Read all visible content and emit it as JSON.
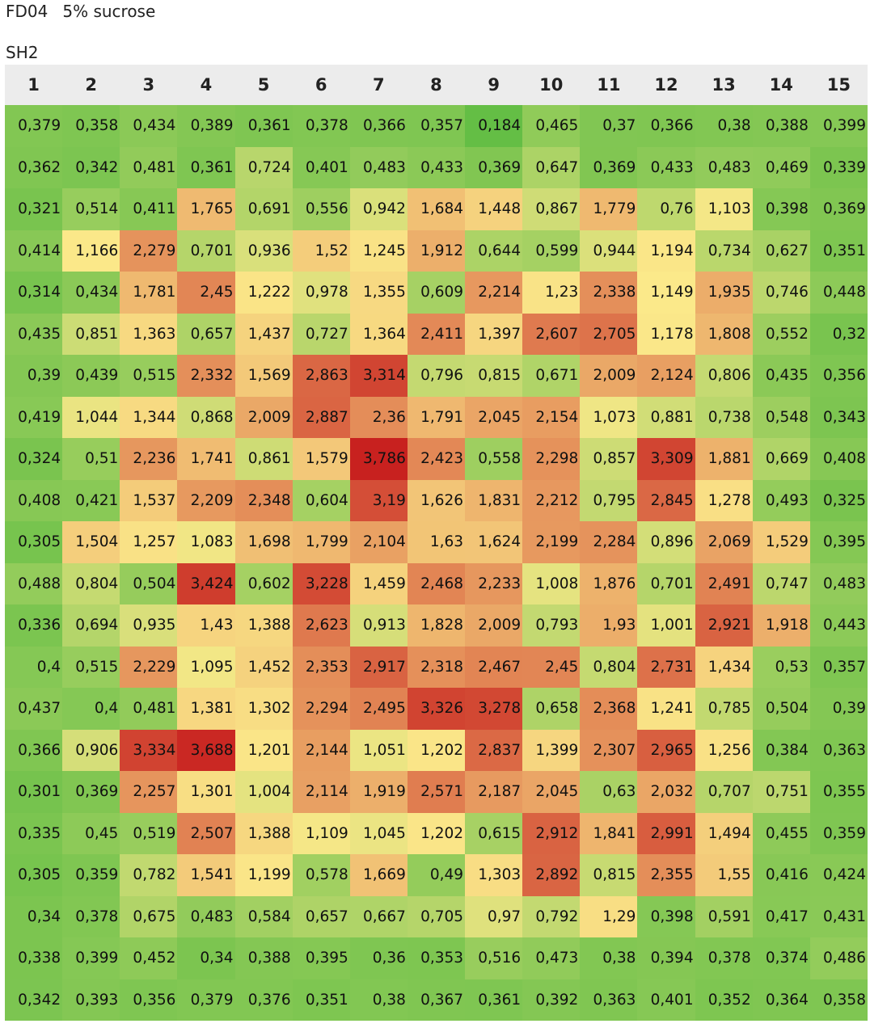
{
  "header": {
    "title": "FD04",
    "condition": "5% sucrose",
    "subtitle": "SH2"
  },
  "chart_data": {
    "type": "heatmap",
    "title": "FD04   5% sucrose",
    "subtitle": "SH2",
    "columns": [
      "1",
      "2",
      "3",
      "4",
      "5",
      "6",
      "7",
      "8",
      "9",
      "10",
      "11",
      "12",
      "13",
      "14",
      "15"
    ],
    "colorscale": {
      "low": "#63be45",
      "mid": "#fbe98a",
      "high": "#c8201e",
      "min": 0.18,
      "mid_value": 1.15,
      "max": 3.8
    },
    "cells": [
      [
        "0,379",
        "0,358",
        "0,434",
        "0,389",
        "0,361",
        "0,378",
        "0,366",
        "0,357",
        "0,184",
        "0,465",
        "0,37",
        "0,366",
        "0,38",
        "0,388",
        "0,399"
      ],
      [
        "0,362",
        "0,342",
        "0,481",
        "0,361",
        "0,724",
        "0,401",
        "0,483",
        "0,433",
        "0,369",
        "0,647",
        "0,369",
        "0,433",
        "0,483",
        "0,469",
        "0,339"
      ],
      [
        "0,321",
        "0,514",
        "0,411",
        "1,765",
        "0,691",
        "0,556",
        "0,942",
        "1,684",
        "1,448",
        "0,867",
        "1,779",
        "0,76",
        "1,103",
        "0,398",
        "0,369"
      ],
      [
        "0,414",
        "1,166",
        "2,279",
        "0,701",
        "0,936",
        "1,52",
        "1,245",
        "1,912",
        "0,644",
        "0,599",
        "0,944",
        "1,194",
        "0,734",
        "0,627",
        "0,351"
      ],
      [
        "0,314",
        "0,434",
        "1,781",
        "2,45",
        "1,222",
        "0,978",
        "1,355",
        "0,609",
        "2,214",
        "1,23",
        "2,338",
        "1,149",
        "1,935",
        "0,746",
        "0,448"
      ],
      [
        "0,435",
        "0,851",
        "1,363",
        "0,657",
        "1,437",
        "0,727",
        "1,364",
        "2,411",
        "1,397",
        "2,607",
        "2,705",
        "1,178",
        "1,808",
        "0,552",
        "0,32"
      ],
      [
        "0,39",
        "0,439",
        "0,515",
        "2,332",
        "1,569",
        "2,863",
        "3,314",
        "0,796",
        "0,815",
        "0,671",
        "2,009",
        "2,124",
        "0,806",
        "0,435",
        "0,356"
      ],
      [
        "0,419",
        "1,044",
        "1,344",
        "0,868",
        "2,009",
        "2,887",
        "2,36",
        "1,791",
        "2,045",
        "2,154",
        "1,073",
        "0,881",
        "0,738",
        "0,548",
        "0,343"
      ],
      [
        "0,324",
        "0,51",
        "2,236",
        "1,741",
        "0,861",
        "1,579",
        "3,786",
        "2,423",
        "0,558",
        "2,298",
        "0,857",
        "3,309",
        "1,881",
        "0,669",
        "0,408"
      ],
      [
        "0,408",
        "0,421",
        "1,537",
        "2,209",
        "2,348",
        "0,604",
        "3,19",
        "1,626",
        "1,831",
        "2,212",
        "0,795",
        "2,845",
        "1,278",
        "0,493",
        "0,325"
      ],
      [
        "0,305",
        "1,504",
        "1,257",
        "1,083",
        "1,698",
        "1,799",
        "2,104",
        "1,63",
        "1,624",
        "2,199",
        "2,284",
        "0,896",
        "2,069",
        "1,529",
        "0,395"
      ],
      [
        "0,488",
        "0,804",
        "0,504",
        "3,424",
        "0,602",
        "3,228",
        "1,459",
        "2,468",
        "2,233",
        "1,008",
        "1,876",
        "0,701",
        "2,491",
        "0,747",
        "0,483"
      ],
      [
        "0,336",
        "0,694",
        "0,935",
        "1,43",
        "1,388",
        "2,623",
        "0,913",
        "1,828",
        "2,009",
        "0,793",
        "1,93",
        "1,001",
        "2,921",
        "1,918",
        "0,443"
      ],
      [
        "0,4",
        "0,515",
        "2,229",
        "1,095",
        "1,452",
        "2,353",
        "2,917",
        "2,318",
        "2,467",
        "2,45",
        "0,804",
        "2,731",
        "1,434",
        "0,53",
        "0,357"
      ],
      [
        "0,437",
        "0,4",
        "0,481",
        "1,381",
        "1,302",
        "2,294",
        "2,495",
        "3,326",
        "3,278",
        "0,658",
        "2,368",
        "1,241",
        "0,785",
        "0,504",
        "0,39"
      ],
      [
        "0,366",
        "0,906",
        "3,334",
        "3,688",
        "1,201",
        "2,144",
        "1,051",
        "1,202",
        "2,837",
        "1,399",
        "2,307",
        "2,965",
        "1,256",
        "0,384",
        "0,363"
      ],
      [
        "0,301",
        "0,369",
        "2,257",
        "1,301",
        "1,004",
        "2,114",
        "1,919",
        "2,571",
        "2,187",
        "2,045",
        "0,63",
        "2,032",
        "0,707",
        "0,751",
        "0,355"
      ],
      [
        "0,335",
        "0,45",
        "0,519",
        "2,507",
        "1,388",
        "1,109",
        "1,045",
        "1,202",
        "0,615",
        "2,912",
        "1,841",
        "2,991",
        "1,494",
        "0,455",
        "0,359"
      ],
      [
        "0,305",
        "0,359",
        "0,782",
        "1,541",
        "1,199",
        "0,578",
        "1,669",
        "0,49",
        "1,303",
        "2,892",
        "0,815",
        "2,355",
        "1,55",
        "0,416",
        "0,424"
      ],
      [
        "0,34",
        "0,378",
        "0,675",
        "0,483",
        "0,584",
        "0,657",
        "0,667",
        "0,705",
        "0,97",
        "0,792",
        "1,29",
        "0,398",
        "0,591",
        "0,417",
        "0,431"
      ],
      [
        "0,338",
        "0,399",
        "0,452",
        "0,34",
        "0,388",
        "0,395",
        "0,36",
        "0,353",
        "0,516",
        "0,473",
        "0,38",
        "0,394",
        "0,378",
        "0,374",
        "0,486"
      ],
      [
        "0,342",
        "0,393",
        "0,356",
        "0,379",
        "0,376",
        "0,351",
        "0,38",
        "0,367",
        "0,361",
        "0,392",
        "0,363",
        "0,401",
        "0,352",
        "0,364",
        "0,358"
      ]
    ]
  }
}
